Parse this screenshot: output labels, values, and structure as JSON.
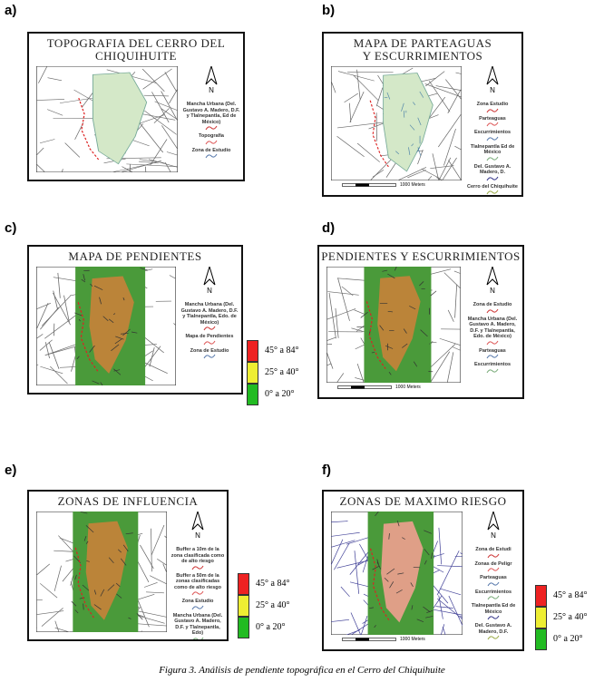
{
  "panels": [
    {
      "label": "a)",
      "title": [
        "TOPOGRAFIA  DEL CERRO DEL",
        "CHIQUIHUITE"
      ],
      "north": "N",
      "legend": [
        "Mancha Urbana (Del. Gustavo A. Madero, D.F. y Tlalnepantla, Ed de México)",
        "Topografía",
        "Zona de Estudio"
      ]
    },
    {
      "label": "b)",
      "title": [
        "MAPA DE PARTEAGUAS",
        "Y ESCURRIMIENTOS"
      ],
      "north": "N",
      "legend": [
        "Zona Estudio",
        "Parteaguas",
        "Escurrimientos",
        "Tlalnepantla Ed de México",
        "Del. Gustavo A. Madero, D.",
        "Cerro del Chiquihuite"
      ],
      "scale_bar": "1000 Meters"
    },
    {
      "label": "c)",
      "title": [
        "MAPA DE PENDIENTES"
      ],
      "north": "N",
      "legend": [
        "Mancha Urbana (Del. Gustavo A. Madero, D.F. y Tlalnepantla, Edo. de México)",
        "Mapa de Pendientes",
        "Zona de Estudio"
      ],
      "scale": [
        "45° a 84°",
        "25° a 40°",
        "0° a 20°"
      ]
    },
    {
      "label": "d)",
      "title": [
        "PENDIENTES Y ESCURRIMIENTOS"
      ],
      "north": "N",
      "legend": [
        "Zona de Estudio",
        "Mancha Urbana (Del. Gustavo A. Madero, D.F. y Tlalnepantla, Edo. de México)",
        "Parteaguas",
        "Escurrimientos"
      ],
      "scale_bar": "1000 Meters"
    },
    {
      "label": "e)",
      "title": [
        "ZONAS DE INFLUENCIA"
      ],
      "north": "N",
      "legend": [
        "Buffer a 10m de la zona clasificada como de alto riesgo",
        "Buffer a 50m de la zonas clasificadas como de alto riesgo",
        "Zona Estudio",
        "Mancha Urbana (Del. Gustavo A. Madero, D.F. y Tlalnepantla, Edo)"
      ],
      "scale": [
        "45° a 84°",
        "25° a 40°",
        "0° a 20°"
      ]
    },
    {
      "label": "f)",
      "title": [
        "ZONAS DE MAXIMO RIESGO"
      ],
      "north": "N",
      "legend": [
        "Zona de Estudi",
        "Zonas de Peligr",
        "Parteaguas",
        "Escurrimientos",
        "Tlalnepantla Ed de México",
        "Del. Gustavo A. Madero, D.F."
      ],
      "scale": [
        "45° a 84°",
        "25° a 40°",
        "0° a 20°"
      ],
      "scale_bar": "1000 Meters"
    }
  ],
  "caption": "Figura 3. Análisis de pendiente topográfica en el Cerro del Chiquihuite"
}
